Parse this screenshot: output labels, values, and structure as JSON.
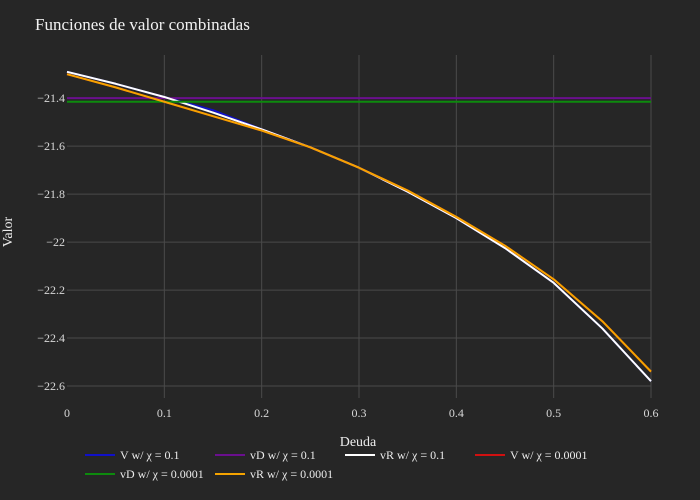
{
  "chart_data": {
    "type": "line",
    "title": "Funciones de valor combinadas",
    "xlabel": "Deuda",
    "ylabel": "Valor",
    "xlim": [
      0,
      0.6
    ],
    "ylim": [
      -22.65,
      -21.22
    ],
    "x_ticks": [
      0,
      0.1,
      0.2,
      0.3,
      0.4,
      0.5,
      0.6
    ],
    "x_tick_labels": [
      "0",
      "0.1",
      "0.2",
      "0.3",
      "0.4",
      "0.5",
      "0.6"
    ],
    "y_ticks": [
      -21.4,
      -21.6,
      -21.8,
      -22.0,
      -22.2,
      -22.4,
      -22.6
    ],
    "y_tick_labels": [
      "−21.4",
      "−21.6",
      "−21.8",
      "−22",
      "−22.2",
      "−22.4",
      "−22.6"
    ],
    "grid": true,
    "legend_position": "bottom",
    "x": [
      0,
      0.05,
      0.1,
      0.15,
      0.2,
      0.25,
      0.3,
      0.35,
      0.4,
      0.45,
      0.5,
      0.55,
      0.6
    ],
    "series": [
      {
        "name": "V w/ χ = 0.1",
        "color": "#1010c8",
        "values": [
          -21.29,
          -21.34,
          -21.395,
          -21.45,
          -21.53,
          -21.605,
          -21.69,
          -21.79,
          -21.9,
          -22.025,
          -22.17,
          -22.36,
          -22.58
        ]
      },
      {
        "name": "vD w/ χ = 0.1",
        "color": "#6a0f8e",
        "values": [
          -21.4,
          -21.4,
          -21.4,
          -21.4,
          -21.4,
          -21.4,
          -21.4,
          -21.4,
          -21.4,
          -21.4,
          -21.4,
          -21.4,
          -21.4
        ]
      },
      {
        "name": "vR w/ χ = 0.1",
        "color": "#ffffff",
        "values": [
          -21.29,
          -21.34,
          -21.395,
          -21.46,
          -21.53,
          -21.605,
          -21.69,
          -21.79,
          -21.9,
          -22.025,
          -22.17,
          -22.36,
          -22.58
        ]
      },
      {
        "name": "V w/ χ = 0.0001",
        "color": "#d01010",
        "values": [
          -21.3,
          -21.355,
          -21.415,
          -21.475,
          -21.535,
          -21.605,
          -21.69,
          -21.785,
          -21.895,
          -22.015,
          -22.155,
          -22.33,
          -22.54
        ]
      },
      {
        "name": "vD w/ χ = 0.0001",
        "color": "#0d8a0d",
        "values": [
          -21.415,
          -21.415,
          -21.415,
          -21.415,
          -21.415,
          -21.415,
          -21.415,
          -21.415,
          -21.415,
          -21.415,
          -21.415,
          -21.415,
          -21.415
        ]
      },
      {
        "name": "vR w/ χ = 0.0001",
        "color": "#f5a300",
        "values": [
          -21.3,
          -21.355,
          -21.415,
          -21.475,
          -21.535,
          -21.605,
          -21.69,
          -21.785,
          -21.895,
          -22.015,
          -22.155,
          -22.33,
          -22.54
        ]
      }
    ]
  }
}
